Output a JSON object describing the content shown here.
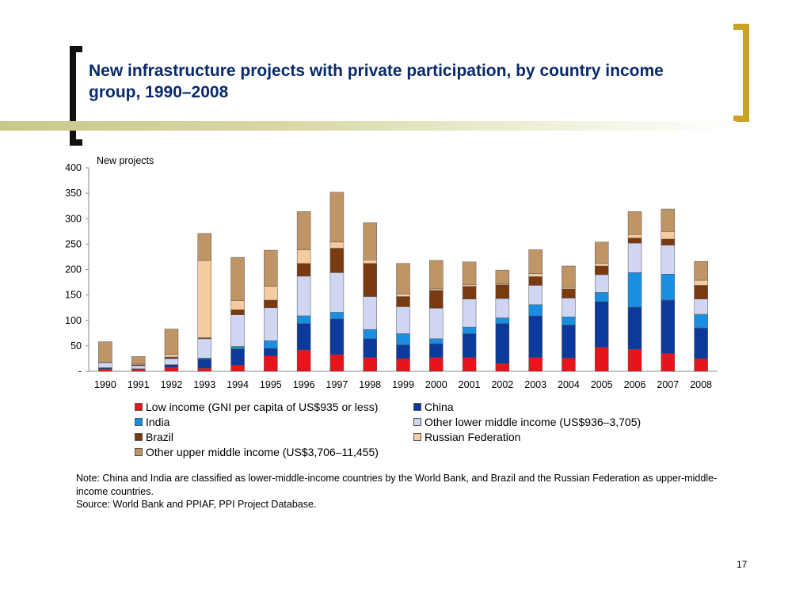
{
  "slide": {
    "title": "New infrastructure projects with private participation, by country income group, 1990–2008",
    "note": "Note: China and India are classified as lower-middle-income countries by the World Bank, and Brazil and the Russian Federation as upper-middle-income countries.",
    "source": "Source: World Bank and PPIAF, PPI Project Database.",
    "page_number": "17",
    "accent_color": "#c9a227",
    "title_color": "#0a2a6b"
  },
  "chart_data": {
    "type": "bar",
    "stacked": true,
    "ylabel": "New projects",
    "ylim": [
      0,
      400
    ],
    "yticks": [
      0,
      50,
      100,
      150,
      200,
      250,
      300,
      350,
      400
    ],
    "ytick_labels": [
      "-",
      "50",
      "100",
      "150",
      "200",
      "250",
      "300",
      "350",
      "400"
    ],
    "grid": false,
    "legend_position": "bottom",
    "categories": [
      "1990",
      "1991",
      "1992",
      "1993",
      "1994",
      "1995",
      "1996",
      "1997",
      "1998",
      "1999",
      "2000",
      "2001",
      "2002",
      "2003",
      "2004",
      "2005",
      "2006",
      "2007",
      "2008"
    ],
    "series": [
      {
        "name": "Low income (GNI per capita of US$935 or less)",
        "color": "#e8141c",
        "values": [
          5,
          4,
          8,
          6,
          12,
          30,
          42,
          33,
          27,
          25,
          27,
          27,
          15,
          27,
          26,
          47,
          43,
          35,
          25
        ]
      },
      {
        "name": "China",
        "color": "#0b3a9c",
        "values": [
          2,
          1,
          5,
          18,
          32,
          15,
          52,
          70,
          37,
          27,
          27,
          47,
          79,
          82,
          65,
          90,
          83,
          105,
          60
        ]
      },
      {
        "name": "India",
        "color": "#1a8ee0",
        "values": [
          0,
          0,
          0,
          2,
          5,
          15,
          15,
          13,
          18,
          22,
          10,
          13,
          11,
          22,
          16,
          18,
          68,
          51,
          27
        ]
      },
      {
        "name": "Other lower middle income  (US$936–3,705)",
        "color": "#d0d6f2",
        "values": [
          10,
          6,
          12,
          38,
          62,
          65,
          78,
          78,
          65,
          53,
          60,
          55,
          38,
          38,
          37,
          35,
          58,
          57,
          30
        ]
      },
      {
        "name": "Brazil",
        "color": "#7a3a10",
        "values": [
          0,
          2,
          3,
          2,
          10,
          15,
          25,
          48,
          65,
          20,
          35,
          25,
          27,
          17,
          18,
          17,
          10,
          12,
          27
        ]
      },
      {
        "name": "Russian Federation",
        "color": "#f7cba0",
        "values": [
          1,
          2,
          5,
          152,
          18,
          27,
          27,
          12,
          7,
          5,
          3,
          3,
          2,
          6,
          3,
          5,
          7,
          15,
          10
        ]
      },
      {
        "name": "Other upper middle income (US$3,706–11,455)",
        "color": "#c09565",
        "values": [
          40,
          14,
          50,
          53,
          85,
          71,
          75,
          98,
          73,
          60,
          56,
          45,
          27,
          47,
          42,
          42,
          45,
          44,
          37
        ]
      }
    ]
  }
}
